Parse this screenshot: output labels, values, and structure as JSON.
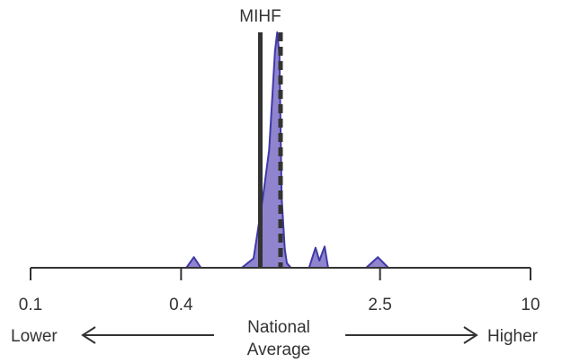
{
  "chart_data": {
    "type": "area",
    "title": "",
    "xlabel": "",
    "ylabel": "",
    "x_scale": "log",
    "xlim": [
      0.1,
      10
    ],
    "ticks": [
      {
        "value": 0.1,
        "label": "0.1"
      },
      {
        "value": 0.4,
        "label": "0.4"
      },
      {
        "value": 2.5,
        "label": "2.5"
      },
      {
        "value": 10,
        "label": "10"
      }
    ],
    "center_label_lines": [
      "National",
      "Average"
    ],
    "direction_labels": {
      "left": "Lower",
      "right": "Higher"
    },
    "reference_lines": [
      {
        "label": "MIHF",
        "x": 0.83,
        "style": "solid"
      },
      {
        "label": "",
        "x": 1.0,
        "style": "dashed"
      }
    ],
    "series": [
      {
        "x": [
          0.42,
          0.45,
          0.48,
          0.7,
          0.78,
          0.85,
          0.9,
          0.93,
          0.95,
          0.97,
          0.99,
          1.01,
          1.04,
          1.06,
          1.1,
          1.3,
          1.38,
          1.43,
          1.5,
          1.55,
          2.2,
          2.45,
          2.7
        ],
        "y": [
          0,
          0.045,
          0,
          0,
          0.04,
          0.3,
          0.5,
          0.75,
          0.92,
          1.0,
          0.9,
          0.3,
          0.08,
          0.02,
          0,
          0,
          0.085,
          0.03,
          0.09,
          0,
          0,
          0.045,
          0
        ],
        "color": "#7b6fc4",
        "line_color": "#3f39a8"
      }
    ]
  }
}
